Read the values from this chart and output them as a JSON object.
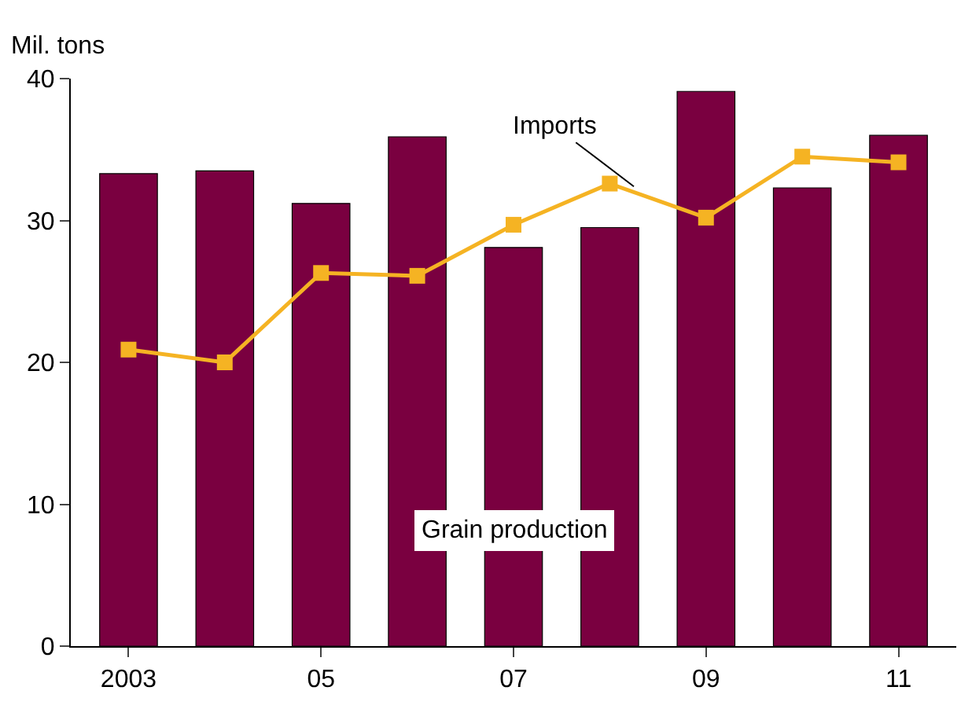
{
  "chart_data": {
    "type": "bar",
    "ylabel": "Mil. tons",
    "categories": [
      "2003",
      null,
      "05",
      null,
      "07",
      null,
      "09",
      null,
      "11"
    ],
    "series": [
      {
        "name": "Grain production",
        "color": "#7a0040",
        "values": [
          33.3,
          33.5,
          31.2,
          35.9,
          28.1,
          29.5,
          39.1,
          32.3,
          36.0
        ]
      },
      {
        "name": "Imports",
        "type": "line",
        "color": "#f5b323",
        "marker": "square",
        "values": [
          20.9,
          20.0,
          26.3,
          26.1,
          29.7,
          32.6,
          30.2,
          34.5,
          34.1
        ]
      }
    ],
    "ylim": [
      0,
      40
    ],
    "yticks": [
      0,
      10,
      20,
      30,
      40
    ],
    "legend": false
  }
}
